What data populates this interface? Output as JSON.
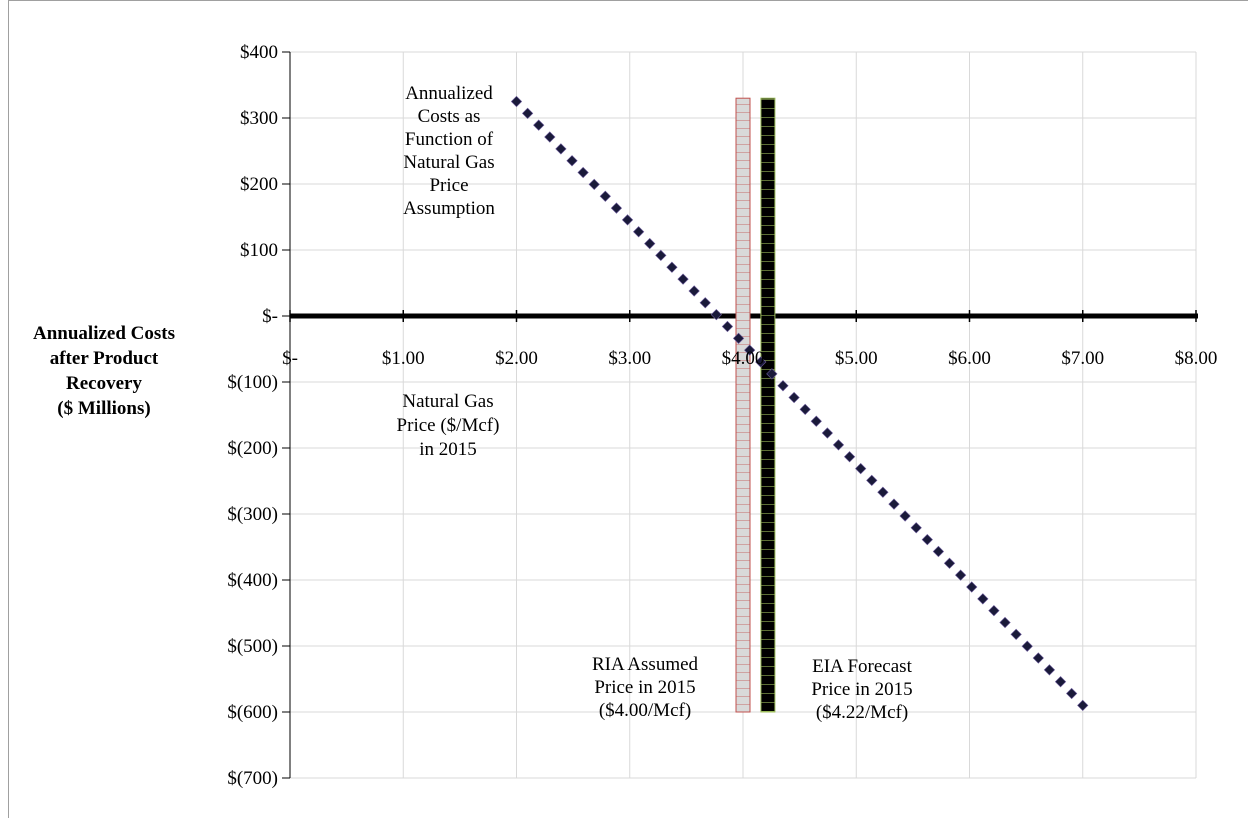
{
  "chart_data": {
    "type": "line",
    "title": "",
    "xlabel": "Natural Gas Price ($/Mcf) in 2015",
    "ylabel": [
      "Annualized Costs",
      "after Product",
      "Recovery",
      "($ Millions)"
    ],
    "xlim": [
      0,
      8
    ],
    "ylim": [
      -700,
      400
    ],
    "grid": true,
    "x_ticks": [
      0,
      1,
      2,
      3,
      4,
      5,
      6,
      7,
      8
    ],
    "x_tick_labels": [
      "$-",
      "$1.00",
      "$2.00",
      "$3.00",
      "$4.00",
      "$5.00",
      "$6.00",
      "$7.00",
      "$8.00"
    ],
    "y_ticks": [
      400,
      300,
      200,
      100,
      0,
      -100,
      -200,
      -300,
      -400,
      -500,
      -600,
      -700
    ],
    "y_tick_labels": [
      "$400",
      "$300",
      "$200",
      "$100",
      "$-",
      "$(100)",
      "$(200)",
      "$(300)",
      "$(400)",
      "$(500)",
      "$(600)",
      "$(700)"
    ],
    "series": [
      {
        "name": "Annualized Costs as Function of Natural Gas Price Assumption",
        "label_lines": [
          "Annualized",
          "Costs as",
          "Function of",
          "Natural Gas",
          "Price",
          "Assumption"
        ],
        "x": [
          2.0,
          7.0
        ],
        "y": [
          325,
          -590
        ],
        "color": "#1a1a3a",
        "style": "dotted-diamond"
      }
    ],
    "reference_bars": [
      {
        "name": "RIA Assumed Price in 2015",
        "label_lines": [
          "RIA Assumed",
          "Price in 2015",
          "($4.00/Mcf)"
        ],
        "x": 4.0,
        "y_top": 330,
        "y_bottom": -600,
        "fill": "#d9d9d9",
        "stroke": "#c0504d"
      },
      {
        "name": "EIA Forecast Price in 2015",
        "label_lines": [
          "EIA Forecast",
          "Price in 2015",
          "($4.22/Mcf)"
        ],
        "x": 4.22,
        "y_top": 330,
        "y_bottom": -600,
        "fill": "#000000",
        "stroke": "#9bbb59"
      }
    ],
    "xlabel_lines": [
      "Natural Gas",
      "Price ($/Mcf)",
      "in 2015"
    ]
  }
}
